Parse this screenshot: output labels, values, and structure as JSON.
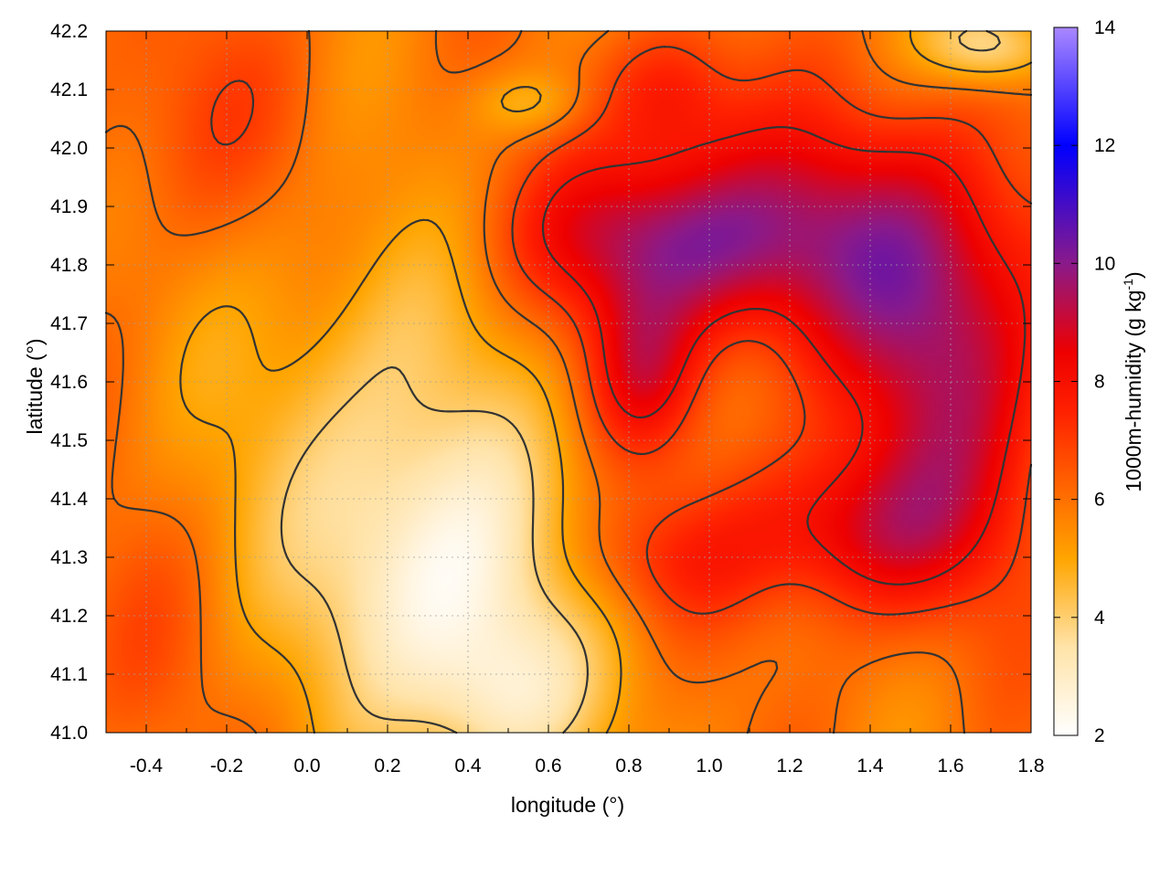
{
  "chart_data": {
    "type": "heatmap",
    "title": "",
    "xlabel": "longitude (°)",
    "ylabel": "latitude (°)",
    "colorbar_label": {
      "text": "1000m-humidity (g kg",
      "superscript": "-1",
      "closing": ")"
    },
    "xlim": [
      -0.5,
      1.8
    ],
    "ylim": [
      41.0,
      42.2
    ],
    "x_ticks": [
      "-0.4",
      "-0.2",
      "0.0",
      "0.2",
      "0.4",
      "0.6",
      "0.8",
      "1.0",
      "1.2",
      "1.4",
      "1.6",
      "1.8"
    ],
    "y_ticks": [
      "41.0",
      "41.1",
      "41.2",
      "41.3",
      "41.4",
      "41.5",
      "41.6",
      "41.7",
      "41.8",
      "41.9",
      "42.0",
      "42.1",
      "42.2"
    ],
    "colorbar_range": [
      2,
      14
    ],
    "colorbar_ticks": [
      "2",
      "4",
      "6",
      "8",
      "10",
      "12",
      "14"
    ],
    "colormap": [
      {
        "value": 2,
        "color": "#ffffff"
      },
      {
        "value": 3.5,
        "color": "#ffe3a8"
      },
      {
        "value": 5,
        "color": "#ffa500"
      },
      {
        "value": 7.5,
        "color": "#ff2000"
      },
      {
        "value": 8.5,
        "color": "#ee0000"
      },
      {
        "value": 10,
        "color": "#8a1a8a"
      },
      {
        "value": 12,
        "color": "#0000ff"
      },
      {
        "value": 14,
        "color": "#aa88ff"
      }
    ],
    "grid": true,
    "contour_color": "#333333",
    "field_blobs": [
      {
        "x": 0.35,
        "y": 41.25,
        "sx": 0.22,
        "sy": 0.18,
        "a": -3.0
      },
      {
        "x": 0.15,
        "y": 41.55,
        "sx": 0.25,
        "sy": 0.25,
        "a": -1.6
      },
      {
        "x": 0.5,
        "y": 41.05,
        "sx": 0.15,
        "sy": 0.1,
        "a": -1.8
      },
      {
        "x": 1.7,
        "y": 42.18,
        "sx": 0.12,
        "sy": 0.05,
        "a": -2.5
      },
      {
        "x": 0.55,
        "y": 42.08,
        "sx": 0.1,
        "sy": 0.04,
        "a": -1.2
      },
      {
        "x": 0.85,
        "y": 41.85,
        "sx": 0.25,
        "sy": 0.1,
        "a": 2.6
      },
      {
        "x": 1.2,
        "y": 41.85,
        "sx": 0.3,
        "sy": 0.15,
        "a": 2.8
      },
      {
        "x": 1.6,
        "y": 41.65,
        "sx": 0.2,
        "sy": 0.25,
        "a": 3.2
      },
      {
        "x": 1.35,
        "y": 41.35,
        "sx": 0.2,
        "sy": 0.1,
        "a": 2.6
      },
      {
        "x": 0.83,
        "y": 41.62,
        "sx": 0.1,
        "sy": 0.1,
        "a": 2.2
      },
      {
        "x": 0.9,
        "y": 42.1,
        "sx": 0.12,
        "sy": 0.08,
        "a": 1.8
      },
      {
        "x": 0.85,
        "y": 41.3,
        "sx": 0.18,
        "sy": 0.08,
        "a": 1.4
      },
      {
        "x": -0.3,
        "y": 42.05,
        "sx": 0.25,
        "sy": 0.15,
        "a": 0.9
      },
      {
        "x": -0.45,
        "y": 41.15,
        "sx": 0.15,
        "sy": 0.15,
        "a": 0.6
      }
    ],
    "field_base": 5.8
  }
}
